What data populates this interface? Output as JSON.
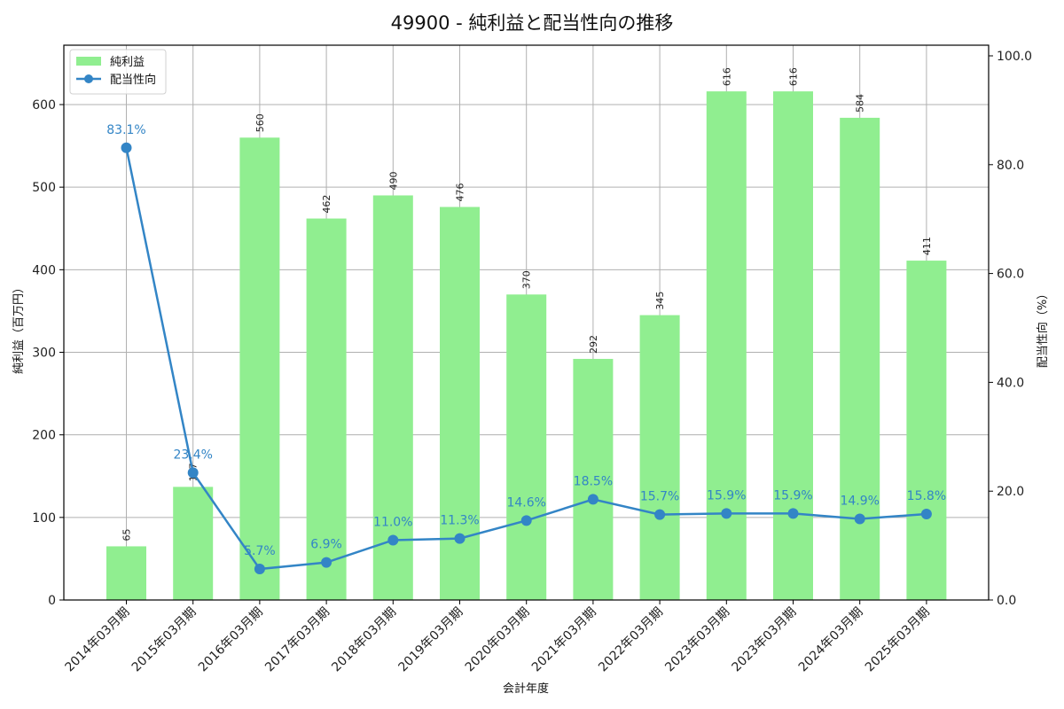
{
  "title": "49900 - 純利益と配当性向の推移",
  "legend": {
    "bar_label": "純利益",
    "line_label": "配当性向"
  },
  "axes": {
    "xlabel": "会計年度",
    "ylabel_left": "純利益（百万円）",
    "ylabel_right": "配当性向（%）",
    "left_ticks": [
      "0",
      "100",
      "200",
      "300",
      "400",
      "500",
      "600"
    ],
    "right_ticks": [
      "0.0",
      "20.0",
      "40.0",
      "60.0",
      "80.0",
      "100.0"
    ]
  },
  "colors": {
    "bar": "#90ee90",
    "line": "#3385c6",
    "grid": "#b0b0b0"
  },
  "chart_data": {
    "type": "bar+line",
    "title": "49900 - 純利益と配当性向の推移",
    "xlabel": "会計年度",
    "ylabel": "純利益（百万円）",
    "ylabel_right": "配当性向（%）",
    "ylim": [
      0,
      670
    ],
    "ylim_right": [
      0,
      102
    ],
    "grid": true,
    "legend_position": "upper left",
    "categories": [
      "2014年03月期",
      "2015年03月期",
      "2016年03月期",
      "2017年03月期",
      "2018年03月期",
      "2019年03月期",
      "2020年03月期",
      "2021年03月期",
      "2022年03月期",
      "2023年03月期",
      "2023年03月期",
      "2024年03月期",
      "2025年03月期"
    ],
    "series": [
      {
        "name": "純利益",
        "type": "bar",
        "axis": "left",
        "values": [
          65,
          137,
          560,
          462,
          490,
          476,
          370,
          292,
          345,
          616,
          616,
          584,
          411
        ]
      },
      {
        "name": "配当性向",
        "type": "line",
        "axis": "right",
        "values": [
          83.1,
          23.4,
          5.7,
          6.9,
          11.0,
          11.3,
          14.6,
          18.5,
          15.7,
          15.9,
          15.9,
          14.9,
          15.8
        ]
      }
    ],
    "bar_labels": [
      "65",
      "137",
      "560",
      "462",
      "490",
      "476",
      "370",
      "292",
      "345",
      "616",
      "616",
      "584",
      "411"
    ],
    "line_labels": [
      "83.1%",
      "23.4%",
      "5.7%",
      "6.9%",
      "11.0%",
      "11.3%",
      "14.6%",
      "18.5%",
      "15.7%",
      "15.9%",
      "15.9%",
      "14.9%",
      "15.8%"
    ]
  }
}
